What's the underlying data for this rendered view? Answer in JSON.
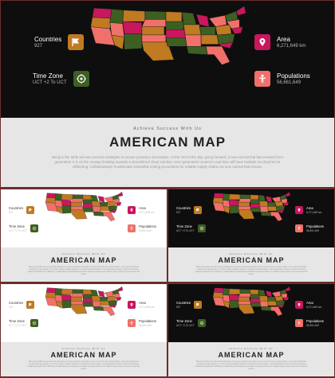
{
  "slide": {
    "stats": {
      "countries": {
        "label": "Countries",
        "value": "927"
      },
      "time_zone": {
        "label": "Time Zone",
        "value": "UCT +2 To UCT"
      },
      "area": {
        "label": "Area",
        "value": "6,271,649 km"
      },
      "populations": {
        "label": "Populations",
        "value": "56,661,649"
      }
    },
    "subtitle": "Achieve Success With Us",
    "title": "AMERICAN MAP",
    "body": "Bring to the table win-win survival strategies to ensure proactive domination. At the end of the day, going forward, a new normal that has evolved from generation X is on the runway heading towards a streamlined cloud solution. User generated content in real-time will have multiple touchpoints for offshoring. Collaboratively Frodstrctate extensible testing procedures for reliable supply chains via new normal that ensure."
  },
  "colors": {
    "magenta": "#c8175d",
    "salmon": "#f2706a",
    "olive": "#3e5f22",
    "ochre": "#c07a22",
    "dark_bg": "#0e0e0e",
    "light_bg": "#ffffff",
    "band": "#e6e6e6"
  },
  "icons": [
    "flag-icon",
    "compass-icon",
    "pin-icon",
    "person-icon"
  ]
}
